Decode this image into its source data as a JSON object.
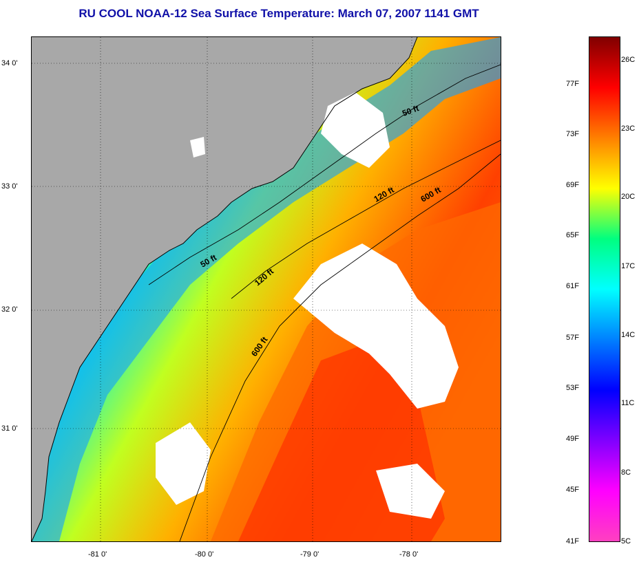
{
  "title": "RU COOL  NOAA-12  Sea Surface Temperature:  March 07, 2007 1141 GMT",
  "map": {
    "latitude_labels": [
      "34 0'",
      "33 0'",
      "32 0'",
      "31 0'"
    ],
    "longitude_labels": [
      "-81 0'",
      "-80 0'",
      "-79 0'",
      "-78 0'"
    ],
    "isobaths": [
      "50 ft",
      "120 ft",
      "600 ft"
    ],
    "contour_labels": [
      {
        "text": "50 ft"
      },
      {
        "text": "120 ft"
      },
      {
        "text": "600 ft"
      },
      {
        "text": "50 ft"
      },
      {
        "text": "120 ft"
      },
      {
        "text": "600 ft"
      }
    ],
    "colors": {
      "land": "#a8a8a8",
      "cloud": "#ffffff",
      "coastline": "#000000"
    }
  },
  "colorbar": {
    "fahrenheit_labels": [
      "77F",
      "73F",
      "69F",
      "65F",
      "61F",
      "57F",
      "53F",
      "49F",
      "45F",
      "41F"
    ],
    "celsius_labels": [
      "26C",
      "23C",
      "20C",
      "17C",
      "14C",
      "11C",
      "8C",
      "5C"
    ],
    "gradient_colors": [
      "#800000",
      "#ff0000",
      "#ff8000",
      "#ffff00",
      "#00ff80",
      "#00ffff",
      "#0080ff",
      "#0000ff",
      "#8000ff",
      "#ff00ff",
      "#ff40c0"
    ]
  }
}
